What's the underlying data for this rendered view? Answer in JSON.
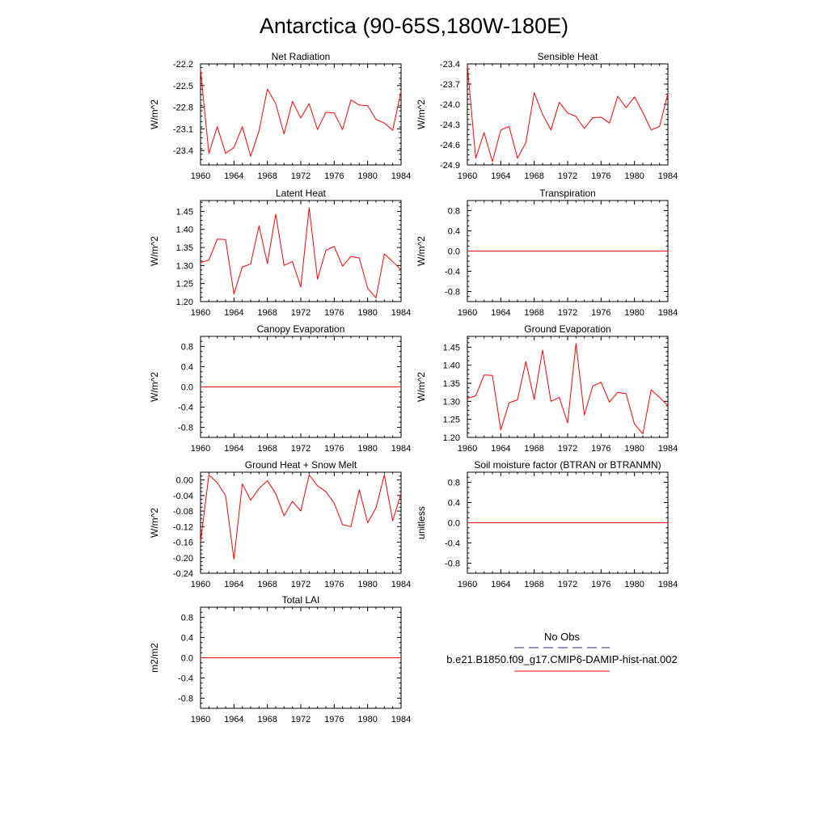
{
  "page": {
    "title": "Antarctica (90-65S,180W-180E)"
  },
  "colors": {
    "series": "#ff0000",
    "obs": "#2b2b7a",
    "axis": "#000000"
  },
  "legend": {
    "obs_label": "No Obs",
    "model_label": "b.e21.B1850.f09_g17.CMIP6-DAMIP-hist-nat.002"
  },
  "chart_data": [
    {
      "type": "line",
      "title": "Net Radiation",
      "ylabel": "W/m^2",
      "xlim": [
        1960,
        1984
      ],
      "ylim": [
        -23.6,
        -22.2
      ],
      "xticks": [
        1960,
        1964,
        1968,
        1972,
        1976,
        1980,
        1984
      ],
      "xtick_labels": [
        "1960",
        "1964",
        "1968",
        "1972",
        "1976",
        "1980",
        "1984"
      ],
      "yticks": [
        -22.2,
        -22.5,
        -22.8,
        -23.1,
        -23.4
      ],
      "ytick_labels": [
        "-22.2",
        "-22.5",
        "-22.8",
        "-23.1",
        "-23.4"
      ],
      "x": [
        1960,
        1961,
        1962,
        1963,
        1964,
        1965,
        1966,
        1967,
        1968,
        1969,
        1970,
        1971,
        1972,
        1973,
        1974,
        1975,
        1976,
        1977,
        1978,
        1979,
        1980,
        1981,
        1982,
        1983,
        1984
      ],
      "series": [
        {
          "values": [
            -22.28,
            -23.44,
            -23.07,
            -23.44,
            -23.36,
            -23.07,
            -23.48,
            -23.13,
            -22.55,
            -22.75,
            -23.17,
            -22.72,
            -22.95,
            -22.75,
            -23.11,
            -22.87,
            -22.88,
            -23.11,
            -22.7,
            -22.77,
            -22.78,
            -22.97,
            -23.02,
            -23.12,
            -22.58
          ]
        }
      ]
    },
    {
      "type": "line",
      "title": "Sensible Heat",
      "ylabel": "W/m^2",
      "xlim": [
        1960,
        1984
      ],
      "ylim": [
        -24.9,
        -23.4
      ],
      "xticks": [
        1960,
        1964,
        1968,
        1972,
        1976,
        1980,
        1984
      ],
      "xtick_labels": [
        "1960",
        "1964",
        "1968",
        "1972",
        "1976",
        "1980",
        "1984"
      ],
      "yticks": [
        -23.4,
        -23.7,
        -24.0,
        -24.3,
        -24.6,
        -24.9
      ],
      "ytick_labels": [
        "-23.4",
        "-23.7",
        "-24.0",
        "-24.3",
        "-24.6",
        "-24.9"
      ],
      "x": [
        1960,
        1961,
        1962,
        1963,
        1964,
        1965,
        1966,
        1967,
        1968,
        1969,
        1970,
        1971,
        1972,
        1973,
        1974,
        1975,
        1976,
        1977,
        1978,
        1979,
        1980,
        1981,
        1982,
        1983,
        1984
      ],
      "series": [
        {
          "values": [
            -23.42,
            -24.8,
            -24.42,
            -24.85,
            -24.38,
            -24.33,
            -24.8,
            -24.57,
            -23.83,
            -24.15,
            -24.38,
            -23.97,
            -24.13,
            -24.18,
            -24.36,
            -24.2,
            -24.19,
            -24.28,
            -23.88,
            -24.05,
            -23.89,
            -24.12,
            -24.38,
            -24.33,
            -23.84
          ]
        }
      ]
    },
    {
      "type": "line",
      "title": "Latent Heat",
      "ylabel": "W/m^2",
      "xlim": [
        1960,
        1984
      ],
      "ylim": [
        1.2,
        1.48
      ],
      "xticks": [
        1960,
        1964,
        1968,
        1972,
        1976,
        1980,
        1984
      ],
      "xtick_labels": [
        "1960",
        "1964",
        "1968",
        "1972",
        "1976",
        "1980",
        "1984"
      ],
      "yticks": [
        1.2,
        1.25,
        1.3,
        1.35,
        1.4,
        1.45
      ],
      "ytick_labels": [
        "1.20",
        "1.25",
        "1.30",
        "1.35",
        "1.40",
        "1.45"
      ],
      "x": [
        1960,
        1961,
        1962,
        1963,
        1964,
        1965,
        1966,
        1967,
        1968,
        1969,
        1970,
        1971,
        1972,
        1973,
        1974,
        1975,
        1976,
        1977,
        1978,
        1979,
        1980,
        1981,
        1982,
        1983,
        1984
      ],
      "series": [
        {
          "values": [
            1.308,
            1.315,
            1.373,
            1.372,
            1.221,
            1.296,
            1.304,
            1.41,
            1.305,
            1.442,
            1.3,
            1.311,
            1.24,
            1.46,
            1.262,
            1.342,
            1.353,
            1.298,
            1.325,
            1.321,
            1.237,
            1.21,
            1.332,
            1.311,
            1.288
          ]
        }
      ]
    },
    {
      "type": "line",
      "title": "Transpiration",
      "ylabel": "W/m^2",
      "xlim": [
        1960,
        1984
      ],
      "ylim": [
        -1.0,
        1.0
      ],
      "xticks": [
        1960,
        1964,
        1968,
        1972,
        1976,
        1980,
        1984
      ],
      "xtick_labels": [
        "1960",
        "1964",
        "1968",
        "1972",
        "1976",
        "1980",
        "1984"
      ],
      "yticks": [
        0.8,
        0.4,
        0.0,
        -0.4,
        -0.8
      ],
      "ytick_labels": [
        "0.8",
        "0.4",
        "0.0",
        "-0.4",
        "-0.8"
      ],
      "x": [
        1960,
        1984
      ],
      "series": [
        {
          "values": [
            0,
            0
          ]
        }
      ]
    },
    {
      "type": "line",
      "title": "Canopy Evaporation",
      "ylabel": "W/m^2",
      "xlim": [
        1960,
        1984
      ],
      "ylim": [
        -1.0,
        1.0
      ],
      "xticks": [
        1960,
        1964,
        1968,
        1972,
        1976,
        1980,
        1984
      ],
      "xtick_labels": [
        "1960",
        "1964",
        "1968",
        "1972",
        "1976",
        "1980",
        "1984"
      ],
      "yticks": [
        0.8,
        0.4,
        0.0,
        -0.4,
        -0.8
      ],
      "ytick_labels": [
        "0.8",
        "0.4",
        "0.0",
        "-0.4",
        "-0.8"
      ],
      "x": [
        1960,
        1984
      ],
      "series": [
        {
          "values": [
            0,
            0
          ]
        }
      ]
    },
    {
      "type": "line",
      "title": "Ground Evaporation",
      "ylabel": "W/m^2",
      "xlim": [
        1960,
        1984
      ],
      "ylim": [
        1.2,
        1.48
      ],
      "xticks": [
        1960,
        1964,
        1968,
        1972,
        1976,
        1980,
        1984
      ],
      "xtick_labels": [
        "1960",
        "1964",
        "1968",
        "1972",
        "1976",
        "1980",
        "1984"
      ],
      "yticks": [
        1.2,
        1.25,
        1.3,
        1.35,
        1.4,
        1.45
      ],
      "ytick_labels": [
        "1.20",
        "1.25",
        "1.30",
        "1.35",
        "1.40",
        "1.45"
      ],
      "x": [
        1960,
        1961,
        1962,
        1963,
        1964,
        1965,
        1966,
        1967,
        1968,
        1969,
        1970,
        1971,
        1972,
        1973,
        1974,
        1975,
        1976,
        1977,
        1978,
        1979,
        1980,
        1981,
        1982,
        1983,
        1984
      ],
      "series": [
        {
          "values": [
            1.308,
            1.315,
            1.373,
            1.372,
            1.221,
            1.296,
            1.304,
            1.41,
            1.305,
            1.442,
            1.3,
            1.311,
            1.24,
            1.46,
            1.262,
            1.342,
            1.353,
            1.298,
            1.325,
            1.321,
            1.237,
            1.21,
            1.332,
            1.311,
            1.288
          ]
        }
      ]
    },
    {
      "type": "line",
      "title": "Ground Heat + Snow Melt",
      "ylabel": "W/m^2",
      "xlim": [
        1960,
        1984
      ],
      "ylim": [
        -0.24,
        0.02
      ],
      "xticks": [
        1960,
        1964,
        1968,
        1972,
        1976,
        1980,
        1984
      ],
      "xtick_labels": [
        "1960",
        "1964",
        "1968",
        "1972",
        "1976",
        "1980",
        "1984"
      ],
      "yticks": [
        0.0,
        -0.04,
        -0.08,
        -0.12,
        -0.16,
        -0.2,
        -0.24
      ],
      "ytick_labels": [
        "0.00",
        "-0.04",
        "-0.08",
        "-0.12",
        "-0.16",
        "-0.20",
        "-0.24"
      ],
      "x": [
        1960,
        1961,
        1962,
        1963,
        1964,
        1965,
        1966,
        1967,
        1968,
        1969,
        1970,
        1971,
        1972,
        1973,
        1974,
        1975,
        1976,
        1977,
        1978,
        1979,
        1980,
        1981,
        1982,
        1983,
        1984
      ],
      "series": [
        {
          "values": [
            -0.16,
            0.013,
            -0.007,
            -0.04,
            -0.204,
            -0.01,
            -0.052,
            -0.022,
            -0.002,
            -0.035,
            -0.092,
            -0.055,
            -0.08,
            0.013,
            -0.015,
            -0.03,
            -0.06,
            -0.115,
            -0.12,
            -0.025,
            -0.11,
            -0.072,
            0.013,
            -0.105,
            -0.035
          ]
        }
      ]
    },
    {
      "type": "line",
      "title": "Soil moisture factor (BTRAN or BTRANMN)",
      "ylabel": "unitless",
      "xlim": [
        1960,
        1984
      ],
      "ylim": [
        -1.0,
        1.0
      ],
      "xticks": [
        1960,
        1964,
        1968,
        1972,
        1976,
        1980,
        1984
      ],
      "xtick_labels": [
        "1960",
        "1964",
        "1968",
        "1972",
        "1976",
        "1980",
        "1984"
      ],
      "yticks": [
        0.8,
        0.4,
        0.0,
        -0.4,
        -0.8
      ],
      "ytick_labels": [
        "0.8",
        "0.4",
        "0.0",
        "-0.4",
        "-0.8"
      ],
      "x": [
        1960,
        1984
      ],
      "series": [
        {
          "values": [
            0,
            0
          ]
        }
      ]
    },
    {
      "type": "line",
      "title": "Total LAI",
      "ylabel": "m2/m2",
      "xlim": [
        1960,
        1984
      ],
      "ylim": [
        -1.0,
        1.0
      ],
      "xticks": [
        1960,
        1964,
        1968,
        1972,
        1976,
        1980,
        1984
      ],
      "xtick_labels": [
        "1960",
        "1964",
        "1968",
        "1972",
        "1976",
        "1980",
        "1984"
      ],
      "yticks": [
        0.8,
        0.4,
        0.0,
        -0.4,
        -0.8
      ],
      "ytick_labels": [
        "0.8",
        "0.4",
        "0.0",
        "-0.4",
        "-0.8"
      ],
      "x": [
        1960,
        1984
      ],
      "series": [
        {
          "values": [
            0,
            0
          ]
        }
      ]
    }
  ]
}
